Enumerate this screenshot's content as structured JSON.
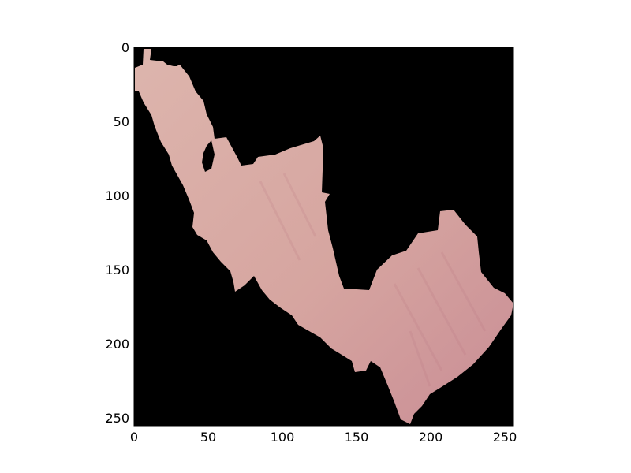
{
  "image_plot": {
    "type": "image",
    "axes": {
      "x_ticks": [
        "0",
        "50",
        "100",
        "150",
        "200",
        "250"
      ],
      "y_ticks": [
        "0",
        "50",
        "100",
        "150",
        "200",
        "250"
      ],
      "x_range": [
        0,
        256
      ],
      "y_range": [
        0,
        256
      ],
      "y_inverted": true
    },
    "image": {
      "content": "masked skin-region image: pink blob on black background",
      "background_color": "#000000",
      "region_color": "#d9a8a2"
    }
  }
}
